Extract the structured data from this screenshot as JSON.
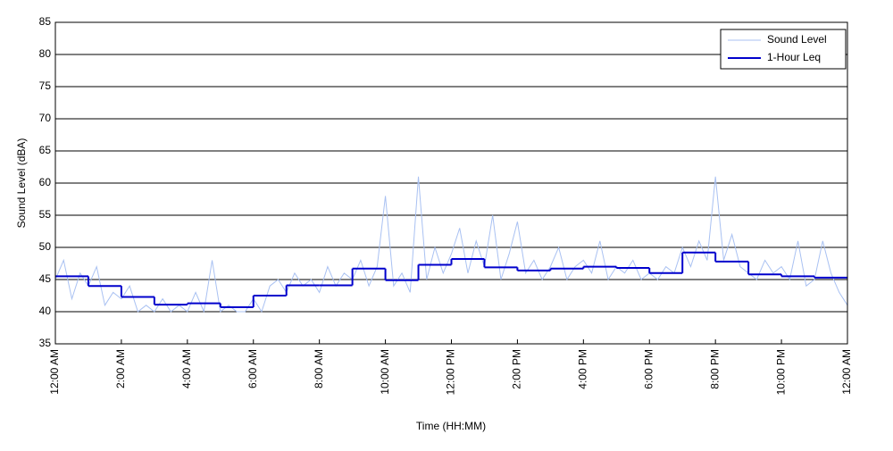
{
  "chart_data": {
    "type": "line",
    "xlabel": "Time (HH:MM)",
    "ylabel": "Sound Level (dBA)",
    "xlim": [
      0,
      24
    ],
    "ylim": [
      35,
      85
    ],
    "yticks": [
      35,
      40,
      45,
      50,
      55,
      60,
      65,
      70,
      75,
      80,
      85
    ],
    "xticks": [
      {
        "value": 0,
        "label": "12:00 AM"
      },
      {
        "value": 2,
        "label": "2:00 AM"
      },
      {
        "value": 4,
        "label": "4:00 AM"
      },
      {
        "value": 6,
        "label": "6:00 AM"
      },
      {
        "value": 8,
        "label": "8:00 AM"
      },
      {
        "value": 10,
        "label": "10:00 AM"
      },
      {
        "value": 12,
        "label": "12:00 PM"
      },
      {
        "value": 14,
        "label": "2:00 PM"
      },
      {
        "value": 16,
        "label": "4:00 PM"
      },
      {
        "value": 18,
        "label": "6:00 PM"
      },
      {
        "value": 20,
        "label": "8:00 PM"
      },
      {
        "value": 22,
        "label": "10:00 PM"
      },
      {
        "value": 24,
        "label": "12:00 AM"
      }
    ],
    "grid": true,
    "legend": "upper right",
    "series": [
      {
        "name": "Sound Level",
        "color": "#a9c1f2",
        "step": false,
        "x": [
          0,
          0.25,
          0.5,
          0.75,
          1,
          1.25,
          1.5,
          1.75,
          2,
          2.25,
          2.5,
          2.75,
          3,
          3.25,
          3.5,
          3.75,
          4,
          4.25,
          4.5,
          4.75,
          5,
          5.25,
          5.5,
          5.75,
          6,
          6.25,
          6.5,
          6.75,
          7,
          7.25,
          7.5,
          7.75,
          8,
          8.25,
          8.5,
          8.75,
          9,
          9.25,
          9.5,
          9.75,
          10,
          10.25,
          10.5,
          10.75,
          11,
          11.25,
          11.5,
          11.75,
          12,
          12.25,
          12.5,
          12.75,
          13,
          13.25,
          13.5,
          13.75,
          14,
          14.25,
          14.5,
          14.75,
          15,
          15.25,
          15.5,
          15.75,
          16,
          16.25,
          16.5,
          16.75,
          17,
          17.25,
          17.5,
          17.75,
          18,
          18.25,
          18.5,
          18.75,
          19,
          19.25,
          19.5,
          19.75,
          20,
          20.25,
          20.5,
          20.75,
          21,
          21.25,
          21.5,
          21.75,
          22,
          22.25,
          22.5,
          22.75,
          23,
          23.25,
          23.5,
          23.75,
          24
        ],
        "values": [
          45,
          48,
          42,
          46,
          44,
          47,
          41,
          43,
          42,
          44,
          40,
          41,
          40,
          42,
          40,
          41,
          40,
          43,
          40,
          48,
          40,
          41,
          40,
          40,
          42,
          40,
          44,
          45,
          43,
          46,
          44,
          45,
          43,
          47,
          44,
          46,
          45,
          48,
          44,
          47,
          58,
          44,
          46,
          43,
          61,
          45,
          50,
          46,
          49,
          53,
          46,
          51,
          47,
          55,
          45,
          49,
          54,
          46,
          48,
          45,
          47,
          50,
          45,
          47,
          48,
          46,
          51,
          45,
          47,
          46,
          48,
          45,
          46,
          45,
          47,
          46,
          50,
          47,
          51,
          48,
          61,
          48,
          52,
          47,
          46,
          45,
          48,
          46,
          47,
          45,
          51,
          44,
          45,
          51,
          46,
          43,
          41
        ]
      },
      {
        "name": "1-Hour Leq",
        "color": "#0000cc",
        "step": true,
        "x": [
          0,
          1,
          2,
          3,
          4,
          5,
          6,
          7,
          8,
          9,
          10,
          11,
          12,
          13,
          14,
          15,
          16,
          17,
          18,
          19,
          20,
          21,
          22,
          23
        ],
        "values": [
          45.5,
          44,
          42.3,
          41.1,
          41.3,
          40.7,
          42.5,
          44.1,
          44.1,
          46.7,
          44.9,
          47.3,
          48.2,
          46.9,
          46.4,
          46.7,
          47,
          46.8,
          46,
          49.2,
          47.8,
          45.8,
          45.5,
          45.3
        ]
      }
    ]
  }
}
